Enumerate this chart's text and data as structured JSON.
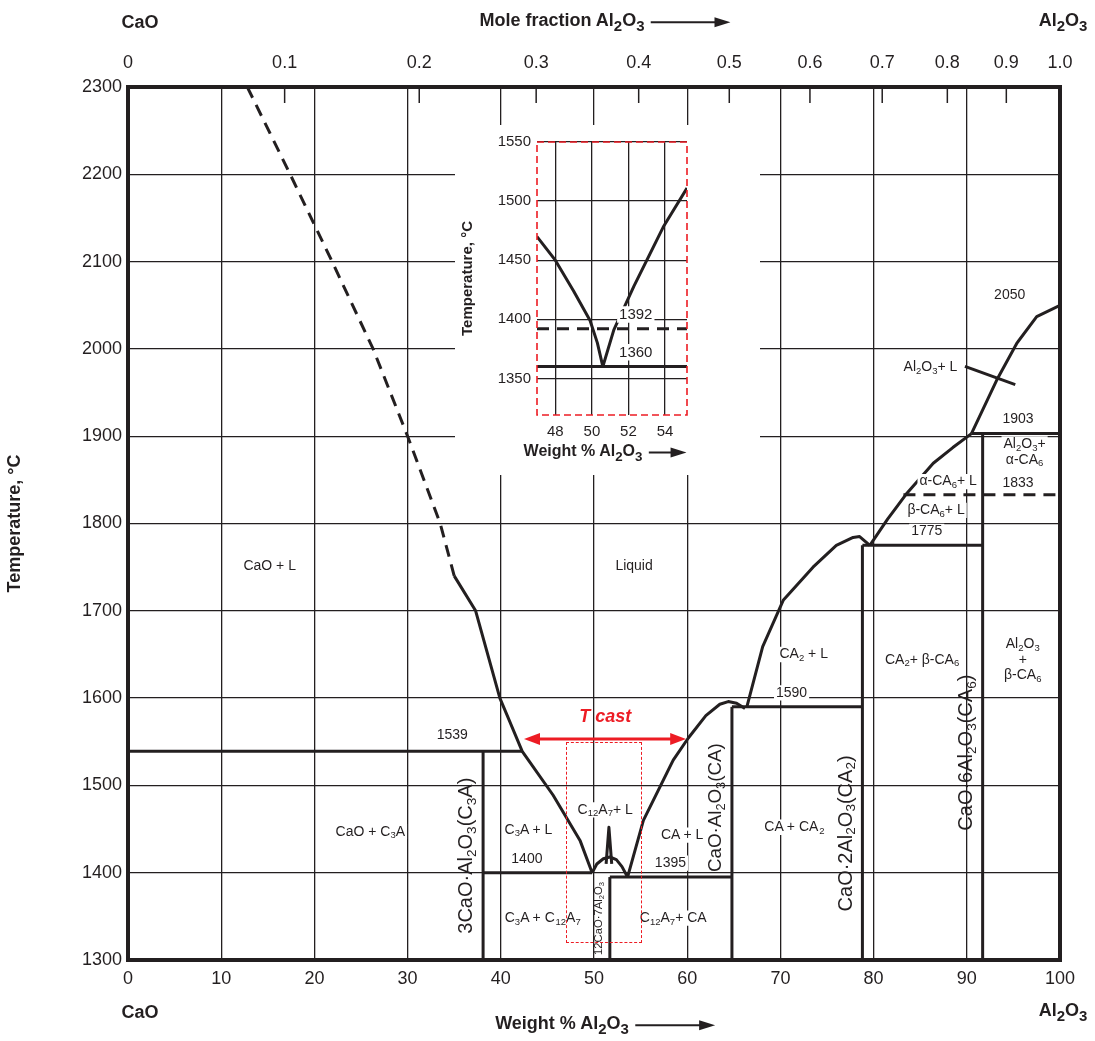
{
  "chart_data": [
    {
      "type": "line",
      "xlabel": "Weight % Al$_{2}$O$_{3}$",
      "ylabel": "Temperature, °C",
      "x2label": "Mole fraction Al$_{2}$O$_{3}$",
      "xlim": [
        0,
        100
      ],
      "xticks": [
        0,
        10,
        20,
        30,
        40,
        50,
        60,
        70,
        80,
        90,
        100
      ],
      "ylim": [
        1300,
        2300
      ],
      "yticks": [
        1300,
        1400,
        1500,
        1600,
        1700,
        1800,
        1900,
        2000,
        2100,
        2200,
        2300
      ],
      "grid": true,
      "legend": false,
      "series": [
        {
          "color": "#231f20",
          "line_style": "dashed",
          "x": [
            12.8,
            17.4,
            21.9,
            26.3,
            30,
            33.5,
            35
          ],
          "values": [
            2300,
            2200,
            2100,
            2000,
            1900,
            1800,
            1740
          ]
        },
        {
          "color": "#231f20",
          "x": [
            35,
            37.3,
            39.9,
            42.3,
            45.6,
            48.5,
            49.8
          ],
          "values": [
            1740,
            1700,
            1600,
            1539,
            1489,
            1437,
            1400
          ]
        },
        {
          "color": "#231f20",
          "x": [
            0,
            42.3
          ],
          "values": [
            1539,
            1539
          ]
        },
        {
          "name": "3CaO·Al$_{2}$O$_{3}$(C$_{3}$A)",
          "color": "#231f20",
          "x": [
            38.1,
            38.1
          ],
          "values": [
            1300,
            1539
          ]
        },
        {
          "color": "#231f20",
          "x": [
            38.1,
            49.8
          ],
          "values": [
            1400,
            1400
          ]
        },
        {
          "color": "#231f20",
          "x": [
            49.8,
            50.3,
            51,
            51.7,
            52.4,
            53,
            53.6
          ],
          "values": [
            1400,
            1410,
            1416,
            1418,
            1415,
            1407,
            1395
          ]
        },
        {
          "color": "#231f20",
          "x": [
            51.3,
            51.6,
            51.9
          ],
          "values": [
            1410,
            1452,
            1410
          ]
        },
        {
          "name": "12CaO·7Al$_{2}$O$_{3}$",
          "color": "#231f20",
          "x": [
            51.7,
            51.7
          ],
          "values": [
            1300,
            1395
          ]
        },
        {
          "color": "#231f20",
          "x": [
            51.7,
            64.8
          ],
          "values": [
            1395,
            1395
          ]
        },
        {
          "color": "#231f20",
          "x": [
            53.6,
            55.3,
            58.5,
            60.1,
            62,
            63.5,
            64.4,
            65.3,
            66.2
          ],
          "values": [
            1395,
            1460,
            1529,
            1554,
            1580,
            1593,
            1596,
            1594,
            1588
          ]
        },
        {
          "name": "CaO·Al$_{2}$O$_{3}$(CA)",
          "color": "#231f20",
          "x": [
            64.8,
            64.8
          ],
          "values": [
            1300,
            1590
          ]
        },
        {
          "color": "#231f20",
          "x": [
            64.8,
            78.8
          ],
          "values": [
            1590,
            1590
          ]
        },
        {
          "color": "#231f20",
          "x": [
            66.4,
            68.1,
            70.3,
            73.5,
            76,
            77.8,
            78.5,
            79.6
          ],
          "values": [
            1590,
            1659,
            1712,
            1750,
            1775,
            1784,
            1785,
            1775
          ]
        },
        {
          "name": "CaO·2Al$_{2}$O$_{3}$(CA$_{2}$)",
          "color": "#231f20",
          "x": [
            78.8,
            78.8
          ],
          "values": [
            1300,
            1775
          ]
        },
        {
          "color": "#231f20",
          "x": [
            78.8,
            91.7
          ],
          "values": [
            1775,
            1775
          ]
        },
        {
          "color": "#231f20",
          "x": [
            79.6,
            81.5,
            83.6,
            86.4,
            88.5,
            90.5
          ],
          "values": [
            1775,
            1805,
            1835,
            1869,
            1887,
            1903
          ]
        },
        {
          "name": "CaO·6Al$_{2}$O$_{3}$(CA$_{6}$)",
          "color": "#231f20",
          "x": [
            91.7,
            91.7
          ],
          "values": [
            1300,
            1903
          ]
        },
        {
          "color": "#231f20",
          "x": [
            90.5,
            100
          ],
          "values": [
            1903,
            1903
          ]
        },
        {
          "color": "#231f20",
          "line_style": "dashed",
          "x": [
            83.2,
            100
          ],
          "values": [
            1833,
            1833
          ]
        },
        {
          "color": "#231f20",
          "x": [
            90.5,
            93.2,
            95.4,
            97.5,
            100
          ],
          "values": [
            1903,
            1964,
            2007,
            2037,
            2050
          ]
        },
        {
          "color": "#231f20",
          "x": [
            89.8,
            95.2
          ],
          "values": [
            1980,
            1959
          ]
        }
      ],
      "annotations": [
        "CaO",
        "Al$_{2}$O$_{3}$",
        "CaO",
        "Al$_{2}$O$_{3}$",
        "CaO + L",
        "Liquid",
        "CaO + C$_{3}$A",
        "C$_{3}$A + L",
        "C$_{12}$A$_{7}$+ L",
        "CA + L",
        "C$_{3}$A + C$_{12}$A$_{7}$",
        "C$_{12}$A$_{7}$+ CA",
        "CA + CA$_{2}$",
        "CA$_{2}$ + L",
        "CA$_{2}$+ β-CA$_{6}$",
        "Al$_{2}$O$_{3}$\n+\nβ-CA$_{6}$",
        "Al$_{2}$O$_{3}$+\nα-CA$_{6}$",
        "α-CA$_{6}$+ L",
        "β-CA$_{6}$+ L",
        "Al$_{2}$O$_{3}$+ L",
        "T cast",
        "0",
        "0.1",
        "0.2",
        "0.3",
        "0.4",
        "0.5",
        "0.6",
        "0.7",
        "0.8",
        "0.9",
        "1.0",
        {
          "text": "1539",
          "x": 34.8,
          "y": 1558
        },
        {
          "text": "1400",
          "x": 42.8,
          "y": 1416
        },
        {
          "text": "1395",
          "x": 58.2,
          "y": 1411
        },
        {
          "text": "1590",
          "x": 71.2,
          "y": 1606
        },
        {
          "text": "1775",
          "x": 85.7,
          "y": 1791
        },
        {
          "text": "1833",
          "x": 95.5,
          "y": 1846
        },
        {
          "text": "1903",
          "x": 95.5,
          "y": 1919
        },
        {
          "text": "2050",
          "x": 94.6,
          "y": 2062
        }
      ]
    },
    {
      "type": "line",
      "xlabel": "Weight % Al$_{2}$O$_{3}$",
      "ylabel": "Temperature, °C",
      "xlim": [
        47,
        55.2
      ],
      "xticks": [
        48,
        50,
        52,
        54
      ],
      "ylim": [
        1319,
        1550
      ],
      "yticks": [
        1350,
        1400,
        1450,
        1500,
        1550
      ],
      "grid": true,
      "legend": false,
      "series": [
        {
          "color": "#231f20",
          "x": [
            47,
            48,
            49,
            49.9,
            50.3,
            50.6
          ],
          "values": [
            1470,
            1450,
            1424,
            1399,
            1380,
            1360
          ]
        },
        {
          "color": "#231f20",
          "x": [
            50.6,
            51.2,
            52.3,
            53.9,
            55.2
          ],
          "values": [
            1360,
            1391,
            1428,
            1478,
            1511
          ]
        },
        {
          "color": "#231f20",
          "line_style": "dashed",
          "x": [
            47,
            55.2
          ],
          "values": [
            1392,
            1392
          ]
        },
        {
          "color": "#231f20",
          "x": [
            47,
            55.2
          ],
          "values": [
            1360,
            1360
          ]
        }
      ],
      "annotations": [
        {
          "text": "1392",
          "x": 52.4,
          "y": 1404
        },
        {
          "text": "1360",
          "x": 52.4,
          "y": 1372
        }
      ]
    }
  ]
}
